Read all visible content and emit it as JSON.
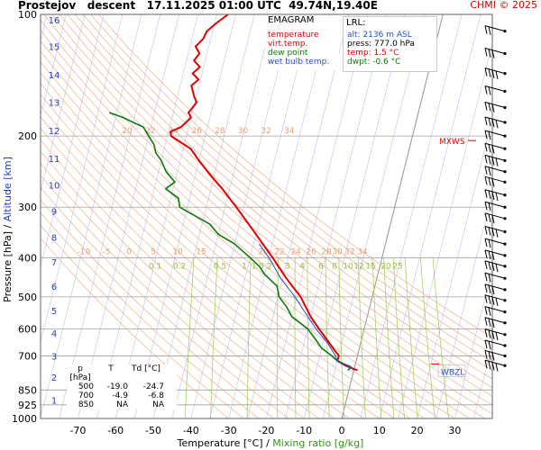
{
  "page": {
    "title": "Prostejov   descent   17.11.2025 01:00 UTC  49.74N,19.40E",
    "copyright": "CHMI © 2025"
  },
  "legend": {
    "title": "EMAGRAM",
    "items": [
      {
        "label": "temperature",
        "color": "#e00000"
      },
      {
        "label": "virt.temp.",
        "color": "#e00000"
      },
      {
        "label": "dew point",
        "color": "#008000"
      },
      {
        "label": "wet bulb temp.",
        "color": "#1f4fd0"
      }
    ]
  },
  "lrl": {
    "title": "LRL:",
    "altitude": "alt: 2136 m ASL",
    "pressure": "press: 777.0 hPa",
    "temperature": "temp: 1.5 °C",
    "dewpoint": "dwpt: -0.6 °C"
  },
  "markers": {
    "mxws": "MXWS",
    "wbzl": "WBZL"
  },
  "table": {
    "headers": [
      "p [hPa]",
      "T",
      "Td [°C]"
    ],
    "rows": [
      [
        "500",
        "-19.0",
        "-24.7"
      ],
      [
        "700",
        "-4.9",
        "-6.8"
      ],
      [
        "850",
        "NA",
        "NA"
      ]
    ]
  },
  "axes": {
    "left_label_pressure": "Pressure [hPa]",
    "left_label_sep": "/",
    "left_label_altitude": "Altitude [km]",
    "bottom_label_temp": "Temperature [°C]",
    "bottom_label_sep": "/",
    "bottom_label_mix": "Mixing ratio [g/kg]",
    "pressure_ticks": [
      "100",
      "200",
      "300",
      "400",
      "500",
      "600",
      "700",
      "850",
      "925",
      "1000"
    ],
    "temperature_ticks": [
      "-70",
      "-60",
      "-50",
      "-40",
      "-30",
      "-20",
      "-10",
      "0",
      "10",
      "20",
      "30"
    ],
    "altitude_ticks": [
      "1",
      "2",
      "3",
      "4",
      "5",
      "6",
      "7",
      "8",
      "9",
      "10",
      "11",
      "12",
      "13",
      "14",
      "15",
      "16"
    ],
    "mixing_ratio_labels": [
      "0.1",
      "0.2",
      "0.5",
      "1",
      "1.5",
      "2",
      "3",
      "4",
      "6",
      "8",
      "10",
      "12",
      "15",
      "20",
      "25"
    ],
    "dry_adiabat_labels_upper": [
      "20",
      "22",
      "24",
      "26",
      "28",
      "30",
      "32",
      "34"
    ],
    "dry_adiabat_labels_lower": [
      "-10",
      "-5",
      "0",
      "5",
      "10",
      "15",
      "20",
      "22",
      "24",
      "26",
      "28",
      "30",
      "32",
      "34"
    ]
  },
  "colors": {
    "temperature": "#e00000",
    "dewpoint": "#0a7a0a",
    "wetbulb": "#1f4fd0",
    "isobar": "#a0a0a0",
    "isotherm": "#c8c8ec",
    "dry_adiabat": "#f2b08a",
    "mixing_ratio": "#a8d060",
    "zero_isotherm": "#909090",
    "label_orange": "#e8a070",
    "label_green": "#8cc040",
    "label_blue": "#2040c0"
  },
  "chart_data": {
    "type": "line",
    "title": "Prostejov   descent   17.11.2025 01:00 UTC  49.74N,19.40E",
    "xlabel": "Temperature [°C]  /  Mixing ratio [g/kg]",
    "ylabel": "Pressure [hPa]  /  Altitude [km]",
    "xlim": [
      -80,
      35
    ],
    "ylim": [
      1000,
      100
    ],
    "y_scale": "log",
    "grid": true,
    "legend_position": "top",
    "series": [
      {
        "name": "temperature",
        "points": [
          {
            "p": 760,
            "t": 1.0
          },
          {
            "p": 740,
            "t": -2.5
          },
          {
            "p": 720,
            "t": -5.0
          },
          {
            "p": 700,
            "t": -4.9
          },
          {
            "p": 670,
            "t": -7.0
          },
          {
            "p": 640,
            "t": -9.0
          },
          {
            "p": 600,
            "t": -12.0
          },
          {
            "p": 560,
            "t": -15.0
          },
          {
            "p": 500,
            "t": -19.0
          },
          {
            "p": 450,
            "t": -24.0
          },
          {
            "p": 400,
            "t": -29.0
          },
          {
            "p": 350,
            "t": -35.0
          },
          {
            "p": 300,
            "t": -42.0
          },
          {
            "p": 270,
            "t": -47.0
          },
          {
            "p": 250,
            "t": -51.0
          },
          {
            "p": 230,
            "t": -55.0
          },
          {
            "p": 215,
            "t": -58.0
          },
          {
            "p": 205,
            "t": -62.0
          },
          {
            "p": 200,
            "t": -64.0
          },
          {
            "p": 195,
            "t": -64.5
          },
          {
            "p": 190,
            "t": -62.0
          },
          {
            "p": 180,
            "t": -60.0
          },
          {
            "p": 175,
            "t": -61.0
          },
          {
            "p": 165,
            "t": -59.5
          },
          {
            "p": 160,
            "t": -60.5
          },
          {
            "p": 150,
            "t": -62.0
          },
          {
            "p": 145,
            "t": -60.5
          },
          {
            "p": 140,
            "t": -62.5
          },
          {
            "p": 135,
            "t": -61.0
          },
          {
            "p": 130,
            "t": -63.0
          },
          {
            "p": 125,
            "t": -62.0
          },
          {
            "p": 120,
            "t": -63.5
          },
          {
            "p": 115,
            "t": -62.0
          },
          {
            "p": 110,
            "t": -61.5
          },
          {
            "p": 105,
            "t": -59.5
          },
          {
            "p": 100,
            "t": -57.0
          }
        ]
      },
      {
        "name": "dew point",
        "points": [
          {
            "p": 760,
            "t": -1.5
          },
          {
            "p": 745,
            "t": -1.0
          },
          {
            "p": 730,
            "t": -3.5
          },
          {
            "p": 715,
            "t": -5.5
          },
          {
            "p": 700,
            "t": -6.8
          },
          {
            "p": 670,
            "t": -10.0
          },
          {
            "p": 640,
            "t": -12.0
          },
          {
            "p": 600,
            "t": -15.0
          },
          {
            "p": 560,
            "t": -20.0
          },
          {
            "p": 530,
            "t": -22.0
          },
          {
            "p": 500,
            "t": -24.7
          },
          {
            "p": 470,
            "t": -26.0
          },
          {
            "p": 440,
            "t": -30.0
          },
          {
            "p": 420,
            "t": -32.0
          },
          {
            "p": 400,
            "t": -35.0
          },
          {
            "p": 370,
            "t": -40.0
          },
          {
            "p": 350,
            "t": -45.0
          },
          {
            "p": 330,
            "t": -48.0
          },
          {
            "p": 310,
            "t": -54.0
          },
          {
            "p": 300,
            "t": -57.0
          },
          {
            "p": 285,
            "t": -58.0
          },
          {
            "p": 270,
            "t": -62.0
          },
          {
            "p": 260,
            "t": -60.0
          },
          {
            "p": 245,
            "t": -63.0
          },
          {
            "p": 230,
            "t": -65.0
          },
          {
            "p": 220,
            "t": -67.0
          },
          {
            "p": 210,
            "t": -68.0
          },
          {
            "p": 200,
            "t": -70.0
          },
          {
            "p": 190,
            "t": -72.0
          },
          {
            "p": 185,
            "t": -75.0
          },
          {
            "p": 180,
            "t": -78.0
          },
          {
            "p": 175,
            "t": -82.0
          }
        ]
      },
      {
        "name": "wet bulb temp.",
        "points": [
          {
            "p": 760,
            "t": 0.2
          },
          {
            "p": 740,
            "t": -2.0
          },
          {
            "p": 720,
            "t": -5.0
          },
          {
            "p": 700,
            "t": -5.8
          },
          {
            "p": 650,
            "t": -8.8
          },
          {
            "p": 600,
            "t": -12.8
          },
          {
            "p": 550,
            "t": -16.5
          },
          {
            "p": 500,
            "t": -20.5
          },
          {
            "p": 450,
            "t": -25.5
          },
          {
            "p": 400,
            "t": -30.0
          },
          {
            "p": 370,
            "t": -33.5
          }
        ]
      }
    ],
    "wind_barbs_right": true
  }
}
